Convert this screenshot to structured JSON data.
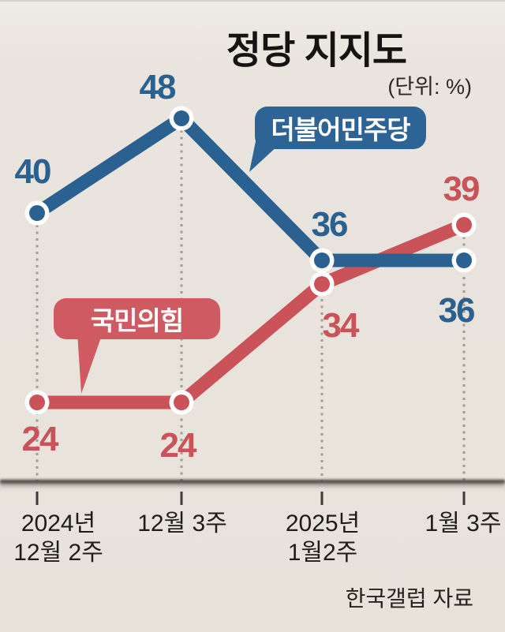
{
  "title": "정당 지지도",
  "unit_label": "(단위: %)",
  "source": "한국갤럽 자료",
  "colors": {
    "blue": "#2a6191",
    "blue_bubble": "#2e6495",
    "red": "#ca535a",
    "red_bubble": "#d05a61",
    "background": "#e8e4dd",
    "dotted_line": "#a39d92",
    "axis": "#3d3b38",
    "text": "#1f1d1a",
    "point_ring": "#ffffff"
  },
  "x_axis": {
    "labels": [
      {
        "lines": [
          "2024년",
          "12월 2주"
        ]
      },
      {
        "lines": [
          "12월 3주"
        ]
      },
      {
        "lines": [
          "2025년",
          "1월2주"
        ]
      },
      {
        "lines": [
          "1월 3주"
        ]
      }
    ]
  },
  "chart_data": {
    "type": "line",
    "title": "정당 지지도",
    "unit": "%",
    "source": "한국갤럽 자료",
    "categories": [
      "2024년 12월 2주",
      "12월 3주",
      "2025년 1월2주",
      "1월 3주"
    ],
    "series": [
      {
        "name": "더불어민주당",
        "color": "#2a6191",
        "values": [
          40,
          48,
          36,
          36
        ]
      },
      {
        "name": "국민의힘",
        "color": "#ca535a",
        "values": [
          24,
          24,
          34,
          39
        ]
      }
    ],
    "ylim": [
      17,
      52
    ],
    "grid": "vertical-dotted-drop-lines",
    "legend_position": "inline-speech-bubbles",
    "annotations": "each point labeled with its value"
  }
}
